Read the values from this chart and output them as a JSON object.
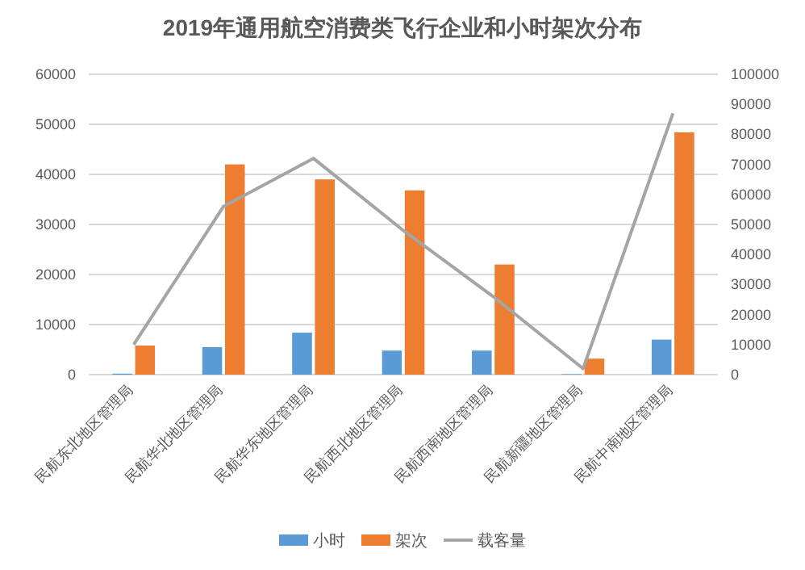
{
  "chart_data": {
    "type": "bar",
    "title": "2019年通用航空消费类飞行企业和小时架次分布",
    "categories": [
      "民航东北地区管理局",
      "民航华北地区管理局",
      "民航华东地区管理局",
      "民航西北地区管理局",
      "民航西南地区管理局",
      "民航新疆地区管理局",
      "民航中南地区管理局"
    ],
    "series": [
      {
        "name": "小时",
        "color": "#5b9bd5",
        "values": [
          200,
          5500,
          8400,
          4800,
          4800,
          100,
          7000
        ]
      },
      {
        "name": "架次",
        "color": "#ed7d31",
        "values": [
          5800,
          42000,
          39000,
          36800,
          22000,
          3200,
          48400
        ]
      },
      {
        "name": "载客量",
        "type": "line",
        "axis": "y2",
        "color": "#a5a5a5",
        "values": [
          10000,
          56000,
          72000,
          48000,
          26000,
          2000,
          87000
        ]
      }
    ],
    "ylim": [
      0,
      60000
    ],
    "yticks": [
      0,
      10000,
      20000,
      30000,
      40000,
      50000,
      60000
    ],
    "y2lim": [
      0,
      100000
    ],
    "y2ticks": [
      0,
      10000,
      20000,
      30000,
      40000,
      50000,
      60000,
      70000,
      80000,
      90000,
      100000
    ],
    "grid": "y",
    "legend": "bottom"
  }
}
